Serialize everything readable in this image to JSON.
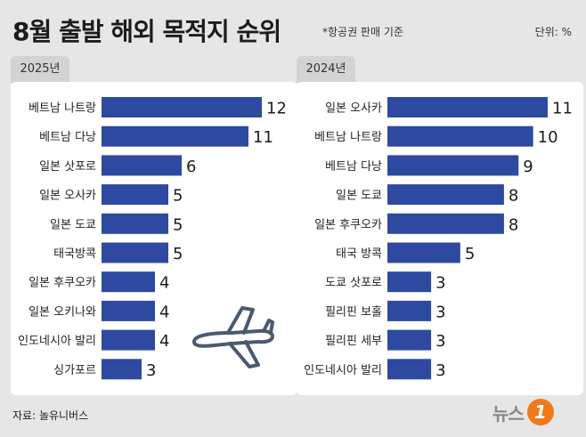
{
  "title": "8월 출발 해외 목적지 순위",
  "note": "*항공권 판매 기준",
  "unit": "단위: %",
  "source": "자료: 놀유니버스",
  "logo": {
    "text": "뉴스",
    "badge": "1"
  },
  "colors": {
    "bar": "#2d4aa0",
    "background": "#e6e6e6",
    "panel": "#ffffff",
    "tab": "#d3d3d3",
    "accent": "#f07a1a"
  },
  "icons": {
    "plane": "airplane-icon"
  },
  "chart_data": [
    {
      "type": "bar",
      "orientation": "horizontal",
      "title": "2025년",
      "categories": [
        "베트남 나트랑",
        "베트남 다낭",
        "일본 삿포로",
        "일본 오사카",
        "일본 도쿄",
        "태국방콕",
        "일본 후쿠오카",
        "일본 오키나와",
        "인도네시아 발리",
        "싱가포르"
      ],
      "values": [
        12,
        11,
        6,
        5,
        5,
        5,
        4,
        4,
        4,
        3
      ],
      "xlim": [
        0,
        12
      ],
      "grid": false,
      "value_labels": true
    },
    {
      "type": "bar",
      "orientation": "horizontal",
      "title": "2024년",
      "categories": [
        "일본 오사카",
        "베트남 나트랑",
        "베트남 다낭",
        "일본 도쿄",
        "일본 후쿠오카",
        "태국 방콕",
        "도쿄 삿포로",
        "필리핀 보홀",
        "필리핀 세부",
        "인도네시아 발리"
      ],
      "values": [
        11,
        10,
        9,
        8,
        8,
        5,
        3,
        3,
        3,
        3
      ],
      "xlim": [
        0,
        11
      ],
      "grid": false,
      "value_labels": true
    }
  ]
}
